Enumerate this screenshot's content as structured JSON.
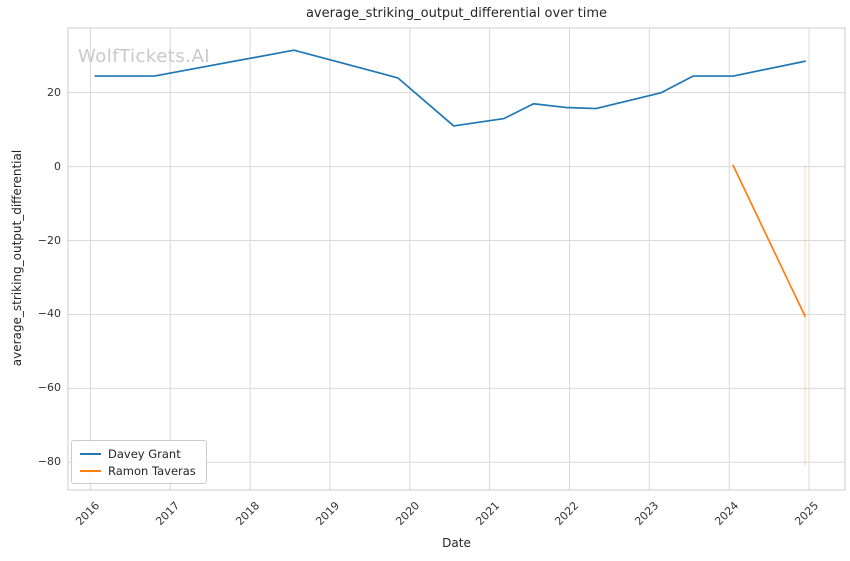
{
  "watermark": "WolfTickets.AI",
  "chart_data": {
    "type": "line",
    "title": "average_striking_output_differential over time",
    "xlabel": "Date",
    "ylabel": "average_striking_output_differential",
    "xlim": [
      2015.72,
      2025.45
    ],
    "ylim": [
      -87.5,
      37.5
    ],
    "x_ticks": [
      2016,
      2017,
      2018,
      2019,
      2020,
      2021,
      2022,
      2023,
      2024,
      2025
    ],
    "y_ticks": [
      20,
      0,
      -20,
      -40,
      -60,
      -80
    ],
    "grid": true,
    "legend_position": "lower left",
    "colors": {
      "grid": "#d9d9d9",
      "spine": "#cccccc",
      "blue": "#1f77b4",
      "orange": "#ff7f0e"
    },
    "series": [
      {
        "name": "Davey Grant",
        "color": "#1f77b4",
        "points": [
          [
            2016.06,
            24.5
          ],
          [
            2016.8,
            24.5
          ],
          [
            2018.55,
            31.5
          ],
          [
            2019.85,
            24.0
          ],
          [
            2020.55,
            11.0
          ],
          [
            2021.18,
            13.0
          ],
          [
            2021.55,
            17.0
          ],
          [
            2021.95,
            16.0
          ],
          [
            2022.33,
            15.7
          ],
          [
            2023.15,
            20.0
          ],
          [
            2023.55,
            24.5
          ],
          [
            2024.05,
            24.5
          ],
          [
            2024.95,
            28.5
          ]
        ]
      },
      {
        "name": "Ramon Taveras",
        "color": "#ff7f0e",
        "points": [
          [
            2024.05,
            0.3
          ],
          [
            2024.95,
            -40.5
          ]
        ]
      }
    ],
    "event_line": {
      "x": 2024.95,
      "y_from": 0.3,
      "y_to": -81.0,
      "color": "#ff7f0e",
      "opacity": 0.25
    }
  }
}
